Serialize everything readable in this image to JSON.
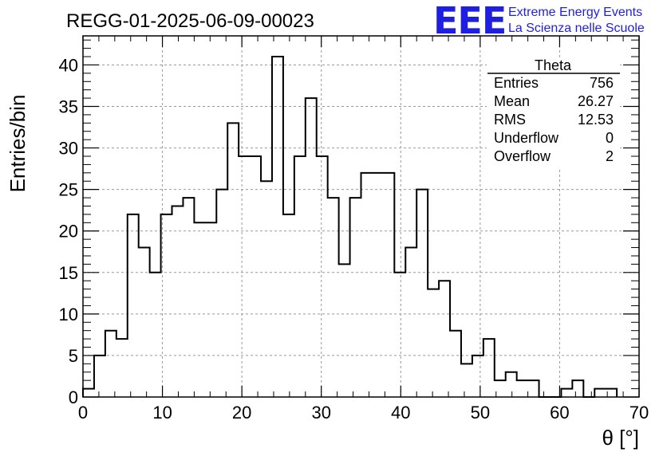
{
  "header": {
    "run_title": "REGG-01-2025-06-09-00023",
    "logo_text": "EEE",
    "logo_line1": "Extreme Energy Events",
    "logo_line2": "La Scienza nelle Scuole"
  },
  "stats_box": {
    "name": "Theta",
    "rows": [
      {
        "label": "Entries",
        "value": "756"
      },
      {
        "label": "Mean",
        "value": "26.27"
      },
      {
        "label": "RMS",
        "value": "12.53"
      },
      {
        "label": "Underflow",
        "value": "0"
      },
      {
        "label": "Overflow",
        "value": "2"
      }
    ]
  },
  "chart_data": {
    "type": "bar",
    "histogram": true,
    "title": "REGG-01-2025-06-09-00023",
    "xlabel": "θ [°]",
    "ylabel": "Entries/bin",
    "xlim": [
      0,
      70
    ],
    "ylim": [
      0,
      43.5
    ],
    "bin_width": 1.4,
    "x": [
      0.7,
      2.1,
      3.5,
      4.9,
      6.3,
      7.7,
      9.1,
      10.5,
      11.9,
      13.3,
      14.7,
      16.1,
      17.5,
      18.9,
      20.3,
      21.7,
      23.1,
      24.5,
      25.9,
      27.3,
      28.7,
      30.1,
      31.5,
      32.9,
      34.3,
      35.7,
      37.1,
      38.5,
      39.9,
      41.3,
      42.7,
      44.1,
      45.5,
      46.9,
      48.3,
      49.7,
      51.1,
      52.5,
      53.9,
      55.3,
      56.7,
      58.1,
      59.5,
      60.9,
      62.3,
      63.7,
      65.1,
      66.5
    ],
    "values": [
      1,
      5,
      8,
      7,
      22,
      18,
      15,
      22,
      23,
      24,
      21,
      21,
      25,
      33,
      29,
      29,
      26,
      41,
      22,
      29,
      36,
      29,
      24,
      16,
      24,
      27,
      27,
      27,
      15,
      18,
      25,
      13,
      14,
      8,
      4,
      5,
      7,
      2,
      3,
      2,
      2,
      0,
      0,
      1,
      2,
      0,
      1,
      1
    ],
    "x_ticks": [
      "0",
      "10",
      "20",
      "30",
      "40",
      "50",
      "60",
      "70"
    ],
    "y_ticks": [
      "0",
      "5",
      "10",
      "15",
      "20",
      "25",
      "30",
      "35",
      "40"
    ],
    "grid": true,
    "legend": "top-right stats box"
  }
}
